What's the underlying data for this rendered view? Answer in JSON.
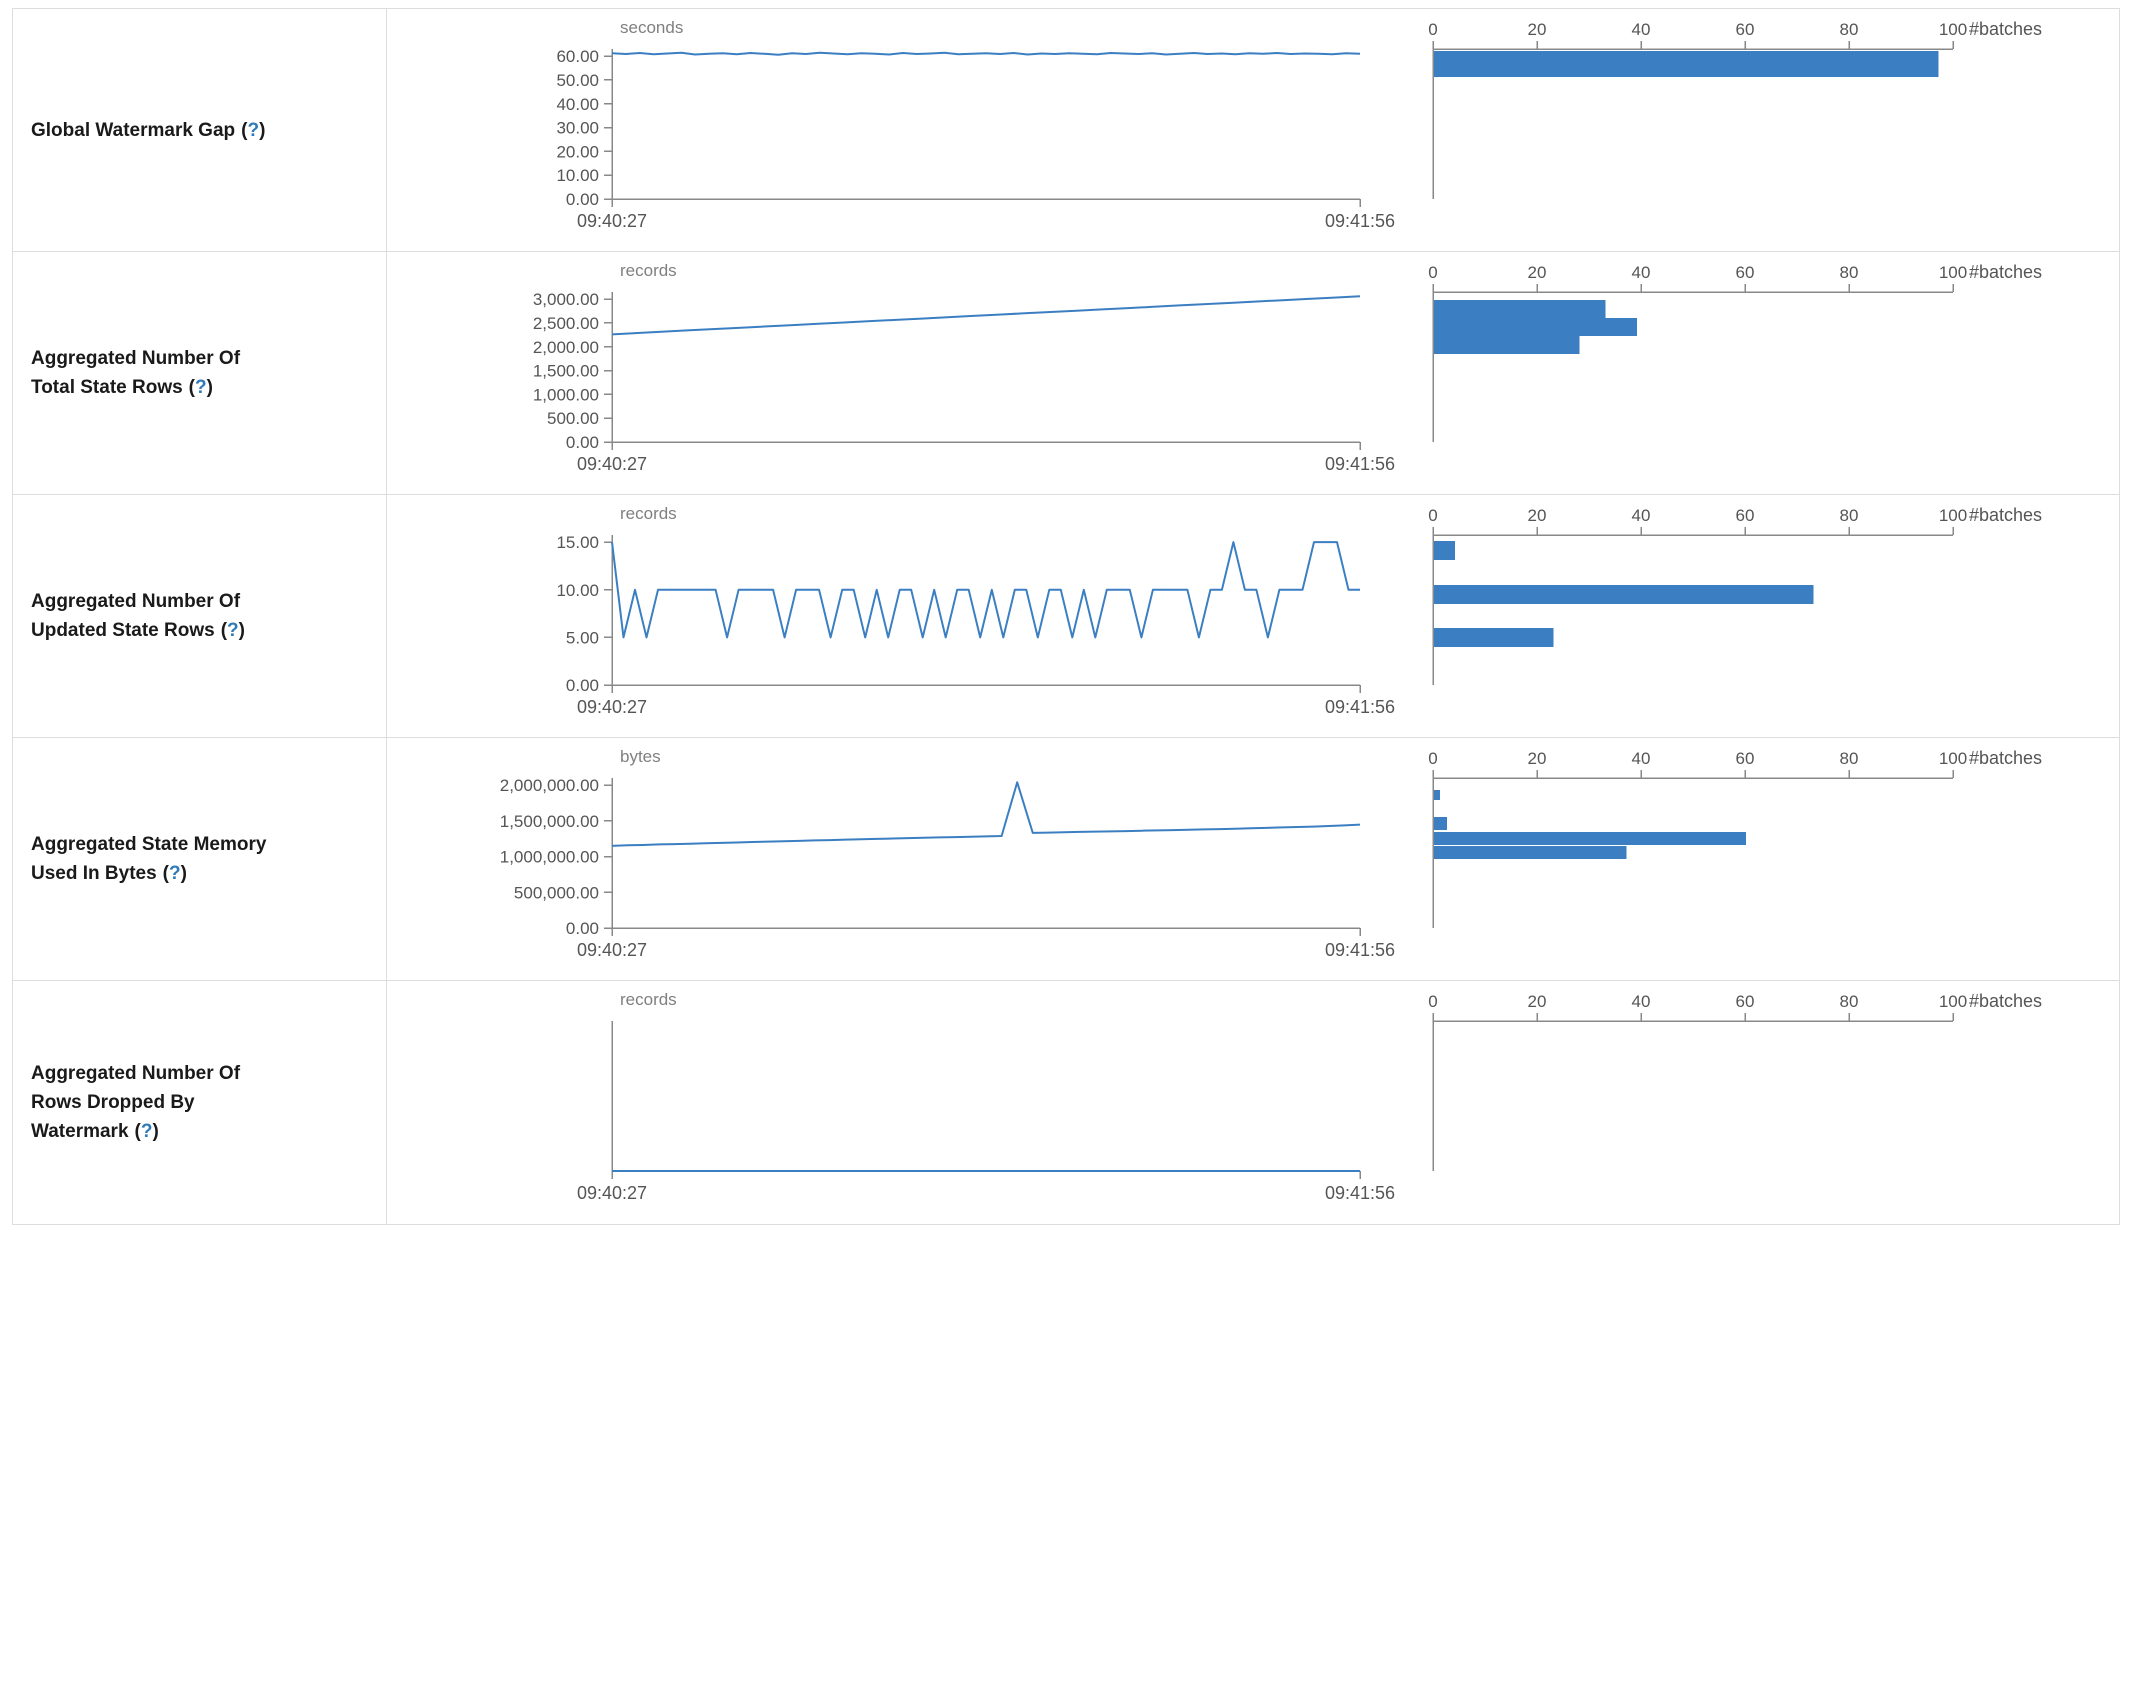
{
  "help": {
    "open": "(",
    "q": "?",
    "close": ")"
  },
  "time_axis": {
    "start": "09:40:27",
    "end": "09:41:56"
  },
  "batches_axis": {
    "ticks": [
      0,
      20,
      40,
      60,
      80,
      100
    ],
    "max": 100,
    "label": "#batches"
  },
  "colors": {
    "accent": "#3b7fc2",
    "axis_line": "#888888",
    "tick_text": "#555555",
    "unit_text": "#808080",
    "label_text": "#1a1a1a",
    "help_link": "#2f7ab9",
    "border": "#dddddd",
    "background": "#ffffff"
  },
  "chart_data": [
    {
      "type": "line+histogram",
      "label": "Global Watermark Gap",
      "unit": "seconds",
      "x_start": "09:40:27",
      "x_end": "09:41:56",
      "y_max": 63,
      "y_ticks": [
        {
          "v": 60,
          "t": "60.00"
        },
        {
          "v": 50,
          "t": "50.00"
        },
        {
          "v": 40,
          "t": "40.00"
        },
        {
          "v": 30,
          "t": "30.00"
        },
        {
          "v": 20,
          "t": "20.00"
        },
        {
          "v": 10,
          "t": "10.00"
        },
        {
          "v": 0,
          "t": "0.00"
        }
      ],
      "values": [
        61.2,
        60.9,
        61.3,
        60.8,
        61.1,
        61.4,
        60.7,
        61.0,
        61.2,
        60.8,
        61.3,
        61.0,
        60.6,
        61.2,
        60.9,
        61.4,
        61.1,
        60.8,
        61.2,
        61.0,
        60.7,
        61.3,
        60.9,
        61.1,
        61.4,
        60.8,
        61.0,
        61.2,
        60.9,
        61.3,
        60.7,
        61.1,
        60.9,
        61.2,
        61.0,
        60.8,
        61.3,
        61.1,
        60.9,
        61.2,
        60.7,
        61.0,
        61.3,
        60.9,
        61.1,
        60.8,
        61.2,
        61.0,
        61.3,
        60.9,
        61.1,
        61.0,
        60.8,
        61.2,
        61.0
      ],
      "histogram_bars": [
        {
          "top": 2,
          "h": 26,
          "batches": 97
        }
      ]
    },
    {
      "type": "line+histogram",
      "label": "Aggregated Number Of Total State Rows",
      "unit": "records",
      "x_start": "09:40:27",
      "x_end": "09:41:56",
      "y_max": 3150,
      "y_ticks": [
        {
          "v": 3000,
          "t": "3,000.00"
        },
        {
          "v": 2500,
          "t": "2,500.00"
        },
        {
          "v": 2000,
          "t": "2,000.00"
        },
        {
          "v": 1500,
          "t": "1,500.00"
        },
        {
          "v": 1000,
          "t": "1,000.00"
        },
        {
          "v": 500,
          "t": "500.00"
        },
        {
          "v": 0,
          "t": "0.00"
        }
      ],
      "values": [
        2260,
        2290,
        2318,
        2345,
        2372,
        2400,
        2428,
        2455,
        2482,
        2510,
        2538,
        2565,
        2592,
        2620,
        2648,
        2675,
        2702,
        2730,
        2758,
        2785,
        2812,
        2840,
        2868,
        2895,
        2922,
        2950,
        2978,
        3005,
        3032,
        3060
      ],
      "histogram_bars": [
        {
          "top": 8,
          "h": 18,
          "batches": 33
        },
        {
          "top": 26,
          "h": 18,
          "batches": 39
        },
        {
          "top": 44,
          "h": 18,
          "batches": 28
        }
      ]
    },
    {
      "type": "line+histogram",
      "label": "Aggregated Number Of Updated State Rows",
      "unit": "records",
      "x_start": "09:40:27",
      "x_end": "09:41:56",
      "y_max": 15.75,
      "y_ticks": [
        {
          "v": 15,
          "t": "15.00"
        },
        {
          "v": 10,
          "t": "10.00"
        },
        {
          "v": 5,
          "t": "5.00"
        },
        {
          "v": 0,
          "t": "0.00"
        }
      ],
      "values": [
        15,
        5,
        10,
        5,
        10,
        10,
        10,
        10,
        10,
        10,
        5,
        10,
        10,
        10,
        10,
        5,
        10,
        10,
        10,
        5,
        10,
        10,
        5,
        10,
        5,
        10,
        10,
        5,
        10,
        5,
        10,
        10,
        5,
        10,
        5,
        10,
        10,
        5,
        10,
        10,
        5,
        10,
        5,
        10,
        10,
        10,
        5,
        10,
        10,
        10,
        10,
        5,
        10,
        10,
        15,
        10,
        10,
        5,
        10,
        10,
        10,
        15,
        15,
        15,
        10,
        10
      ],
      "histogram_bars": [
        {
          "top": 6,
          "h": 19,
          "batches": 4
        },
        {
          "top": 50,
          "h": 19,
          "batches": 73
        },
        {
          "top": 93,
          "h": 19,
          "batches": 23
        }
      ]
    },
    {
      "type": "line+histogram",
      "label": "Aggregated State Memory Used In Bytes",
      "unit": "bytes",
      "x_start": "09:40:27",
      "x_end": "09:41:56",
      "y_max": 2100000,
      "y_ticks": [
        {
          "v": 2000000,
          "t": "2,000,000.00"
        },
        {
          "v": 1500000,
          "t": "1,500,000.00"
        },
        {
          "v": 1000000,
          "t": "1,000,000.00"
        },
        {
          "v": 500000,
          "t": "500,000.00"
        },
        {
          "v": 0,
          "t": "0.00"
        }
      ],
      "values": [
        1150000,
        1158000,
        1162000,
        1170000,
        1174000,
        1180000,
        1186000,
        1192000,
        1197000,
        1204000,
        1209000,
        1215000,
        1220000,
        1226000,
        1231000,
        1237000,
        1242000,
        1248000,
        1253000,
        1258000,
        1263000,
        1268000,
        1273000,
        1278000,
        1283000,
        1288000,
        2040000,
        1332000,
        1336000,
        1340000,
        1345000,
        1349000,
        1353000,
        1357000,
        1362000,
        1366000,
        1371000,
        1375000,
        1380000,
        1385000,
        1390000,
        1396000,
        1402000,
        1408000,
        1414000,
        1420000,
        1428000,
        1436000,
        1448000
      ],
      "histogram_bars": [
        {
          "top": 12,
          "h": 10,
          "batches": 1.2
        },
        {
          "top": 39,
          "h": 13,
          "batches": 2.5
        },
        {
          "top": 54,
          "h": 13,
          "batches": 60
        },
        {
          "top": 68,
          "h": 13,
          "batches": 37
        }
      ]
    },
    {
      "type": "line+histogram",
      "label": "Aggregated Number Of Rows Dropped By Watermark",
      "unit": "records",
      "x_start": "09:40:27",
      "x_end": "09:41:56",
      "y_max": 1,
      "y_ticks": [],
      "values": [
        0,
        0,
        0,
        0,
        0,
        0,
        0,
        0,
        0,
        0
      ],
      "histogram_bars": []
    }
  ]
}
